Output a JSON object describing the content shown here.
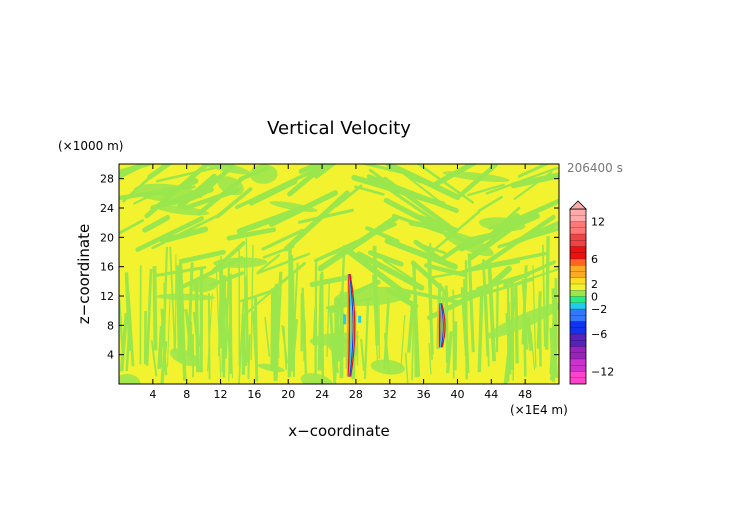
{
  "chart_data": {
    "type": "heatmap",
    "title": "Vertical Velocity",
    "xlabel": "x−coordinate",
    "ylabel": "z−coordinate",
    "x_unit": "(×1E4 m)",
    "y_unit": "(×1000 m)",
    "time_label": "206400 s",
    "xlim": [
      0,
      52
    ],
    "ylim": [
      0,
      30
    ],
    "x_ticks": [
      "4",
      "8",
      "12",
      "16",
      "20",
      "24",
      "28",
      "32",
      "36",
      "40",
      "44",
      "48"
    ],
    "y_ticks": [
      "4",
      "8",
      "12",
      "16",
      "20",
      "24",
      "28"
    ],
    "colorbar": {
      "labels": [
        "12",
        "6",
        "2",
        "0",
        "−2",
        "−6",
        "−12"
      ],
      "label_values": [
        12,
        6,
        2,
        0,
        -2,
        -6,
        -12
      ],
      "range": [
        -14,
        14
      ],
      "colors": {
        "low": "#ff44cc",
        "purple": "#9922bb",
        "blue": "#1133ee",
        "cyan": "#22ccee",
        "green": "#99e64d",
        "yellow": "#f2f22e",
        "orange": "#ffaa22",
        "red": "#ee1111",
        "high": "#ffaaaa"
      }
    },
    "field": {
      "background_color": "#f2f22e",
      "band_color": "#99e64d",
      "features": [
        {
          "x": 27.2,
          "z_range": [
            1,
            15
          ],
          "extremes": [
            -4,
            10
          ]
        },
        {
          "x": 38.0,
          "z_range": [
            5,
            11
          ],
          "extremes": [
            -2,
            8
          ]
        }
      ]
    }
  }
}
